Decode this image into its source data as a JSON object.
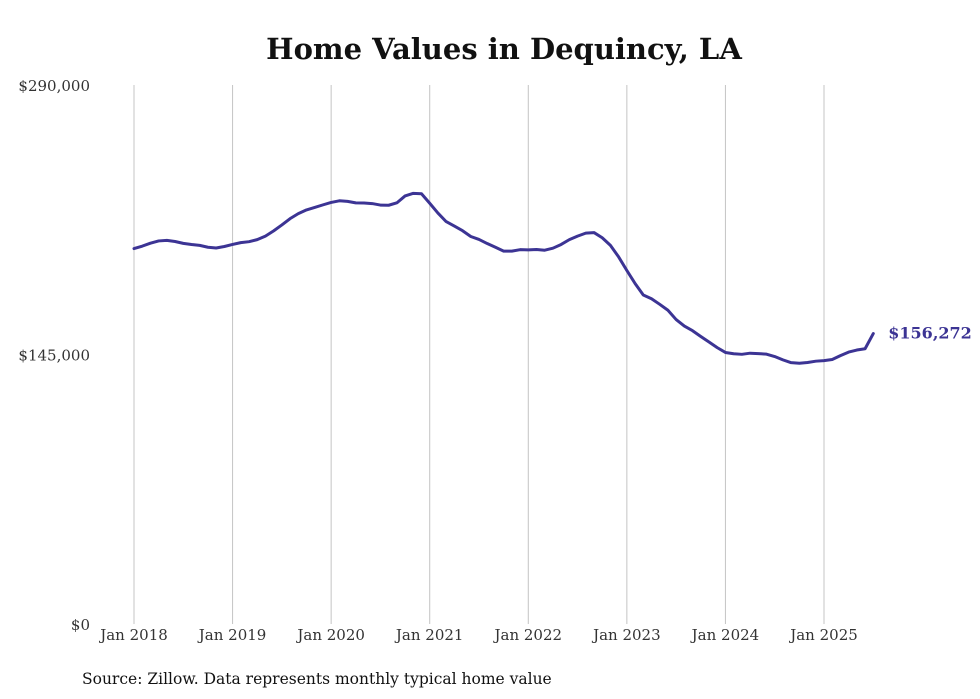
{
  "chart_data": {
    "type": "line",
    "title": "Home Values in Dequincy, LA",
    "source": "Source: Zillow. Data represents monthly typical home value",
    "xlabel": "",
    "ylabel": "",
    "ylim": [
      0,
      290000
    ],
    "yticks": [
      {
        "value": 0,
        "label": "$0"
      },
      {
        "value": 145000,
        "label": "$145,000"
      },
      {
        "value": 290000,
        "label": "$290,000"
      }
    ],
    "xticks": [
      {
        "label": "Jan 2018",
        "index": 0
      },
      {
        "label": "Jan 2019",
        "index": 12
      },
      {
        "label": "Jan 2020",
        "index": 24
      },
      {
        "label": "Jan 2021",
        "index": 36
      },
      {
        "label": "Jan 2022",
        "index": 48
      },
      {
        "label": "Jan 2023",
        "index": 60
      },
      {
        "label": "Jan 2024",
        "index": 72
      },
      {
        "label": "Jan 2025",
        "index": 84
      }
    ],
    "grid": "vertical",
    "line_color": "#3c3494",
    "end_label": "$156,272",
    "series": [
      {
        "name": "Typical home value",
        "x_start": "Jan 2018",
        "frequency": "monthly",
        "values": [
          202000,
          203300,
          204900,
          206100,
          206400,
          205800,
          204800,
          204200,
          203700,
          202700,
          202300,
          203100,
          204200,
          205200,
          205700,
          206800,
          208700,
          211500,
          214700,
          218100,
          220800,
          222800,
          224100,
          225500,
          226800,
          227700,
          227400,
          226600,
          226500,
          226200,
          225400,
          225300,
          226600,
          230300,
          231700,
          231500,
          226400,
          221100,
          216500,
          214100,
          211600,
          208500,
          206900,
          204700,
          202700,
          200600,
          200600,
          201400,
          201300,
          201500,
          201100,
          202200,
          204200,
          206800,
          208700,
          210300,
          210600,
          207800,
          203700,
          197500,
          190200,
          183200,
          177000,
          175000,
          172000,
          168800,
          163800,
          160300,
          157800,
          154700,
          151700,
          148700,
          146100,
          145400,
          145100,
          145700,
          145500,
          145200,
          143900,
          142100,
          140600,
          140300,
          140700,
          141400,
          141700,
          142300,
          144400,
          146300,
          147400,
          148100,
          156272
        ]
      }
    ]
  }
}
